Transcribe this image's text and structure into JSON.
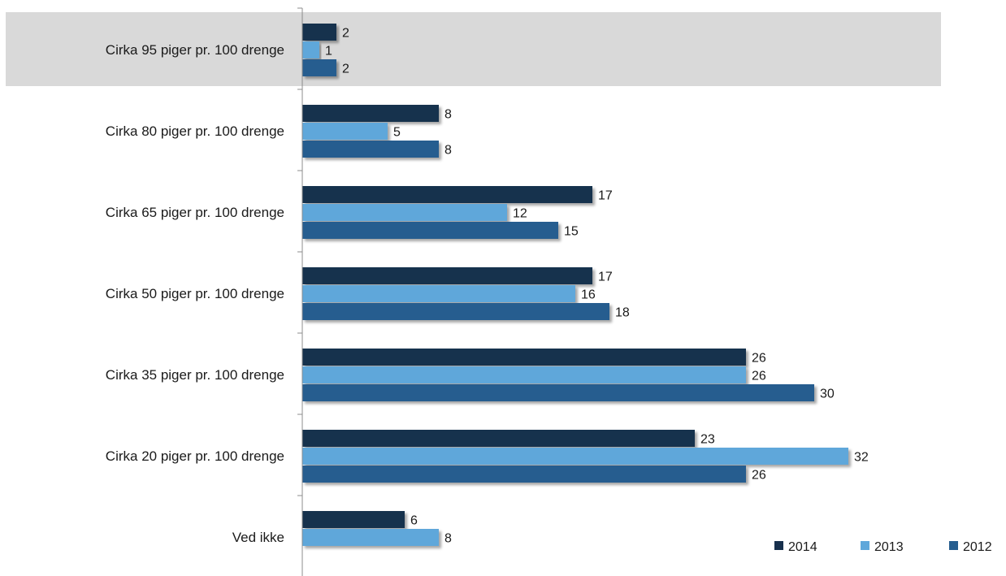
{
  "chart_data": {
    "type": "bar",
    "orientation": "horizontal",
    "categories": [
      "Cirka 95 piger pr. 100 drenge",
      "Cirka 80 piger pr. 100 drenge",
      "Cirka 65 piger pr. 100 drenge",
      "Cirka 50 piger pr. 100 drenge",
      "Cirka 35 piger pr. 100 drenge",
      "Cirka 20 piger pr. 100 drenge",
      "Ved ikke"
    ],
    "series": [
      {
        "name": "2014",
        "color": "#17304d",
        "values": [
          2,
          8,
          17,
          17,
          26,
          23,
          6
        ]
      },
      {
        "name": "2013",
        "color": "#5fa7da",
        "values": [
          1,
          5,
          12,
          16,
          26,
          32,
          8
        ]
      },
      {
        "name": "2012",
        "color": "#255d8f",
        "values": [
          2,
          8,
          15,
          18,
          30,
          26,
          null
        ]
      }
    ],
    "highlighted_category": "Cirka 95 piger pr. 100 drenge",
    "xlim": [
      0,
      32
    ],
    "grid": false,
    "legend_position": "bottom-right",
    "title": "",
    "xlabel": "",
    "ylabel": ""
  }
}
